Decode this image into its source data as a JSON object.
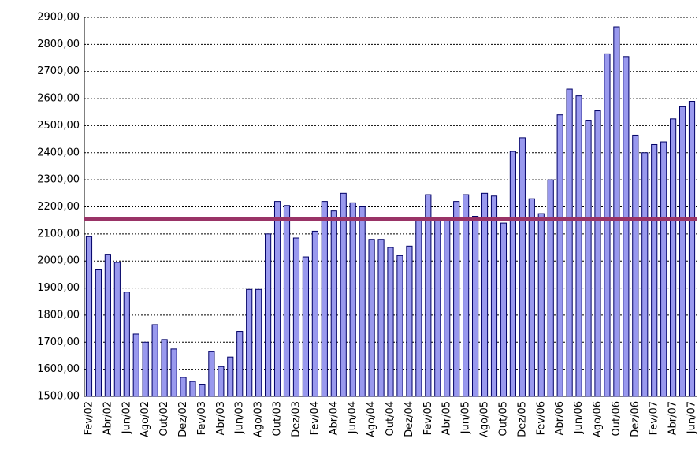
{
  "chart_data": {
    "type": "bar",
    "categories": [
      "Fev/02",
      null,
      "Abr/02",
      null,
      "Jun/02",
      null,
      "Ago/02",
      null,
      "Out/02",
      null,
      "Dez/02",
      null,
      "Fev/03",
      null,
      "Abr/03",
      null,
      "Jun/03",
      null,
      "Ago/03",
      null,
      "Out/03",
      null,
      "Dez/03",
      null,
      "Fev/04",
      null,
      "Abr/04",
      null,
      "Jun/04",
      null,
      "Ago/04",
      null,
      "Out/04",
      null,
      "Dez/04",
      null,
      "Fev/05",
      null,
      "Abr/05",
      null,
      "Jun/05",
      null,
      "Ago/05",
      null,
      "Out/05",
      null,
      "Dez/05",
      null,
      "Fev/06",
      null,
      "Abr/06",
      null,
      "Jun/06",
      null,
      "Ago/06",
      null,
      "Out/06",
      null,
      "Dez/06",
      null,
      "Fev/07",
      null,
      "Abr/07",
      null,
      "Jun/07"
    ],
    "values": [
      2090,
      1970,
      2025,
      1995,
      1885,
      1730,
      1700,
      1765,
      1710,
      1675,
      1570,
      1555,
      1545,
      1665,
      1610,
      1645,
      1740,
      1895,
      1895,
      2100,
      2220,
      2205,
      2085,
      2015,
      2110,
      2220,
      2185,
      2250,
      2215,
      2200,
      2080,
      2080,
      2050,
      2020,
      2055,
      2150,
      2245,
      2150,
      2155,
      2220,
      2245,
      2165,
      2250,
      2240,
      2140,
      2405,
      2455,
      2230,
      2175,
      2300,
      2540,
      2635,
      2610,
      2520,
      2555,
      2765,
      2865,
      2755,
      2465,
      2400,
      2430,
      2440,
      2525,
      2570,
      2590
    ],
    "color": "#9999ee",
    "ylim": [
      1500,
      2900
    ],
    "yticks": [
      {
        "value": 1500,
        "label": "1500,00"
      },
      {
        "value": 1600,
        "label": "1600,00"
      },
      {
        "value": 1700,
        "label": "1700,00"
      },
      {
        "value": 1800,
        "label": "1800,00"
      },
      {
        "value": 1900,
        "label": "1900,00"
      },
      {
        "value": 2000,
        "label": "2000,00"
      },
      {
        "value": 2100,
        "label": "2100,00"
      },
      {
        "value": 2200,
        "label": "2200,00"
      },
      {
        "value": 2300,
        "label": "2300,00"
      },
      {
        "value": 2400,
        "label": "2400,00"
      },
      {
        "value": 2500,
        "label": "2500,00"
      },
      {
        "value": 2600,
        "label": "2600,00"
      },
      {
        "value": 2700,
        "label": "2700,00"
      },
      {
        "value": 2800,
        "label": "2800,00"
      },
      {
        "value": 2900,
        "label": "2900,00"
      }
    ],
    "grid": true,
    "reference_line": {
      "value": 2155,
      "color": "#993366"
    }
  }
}
